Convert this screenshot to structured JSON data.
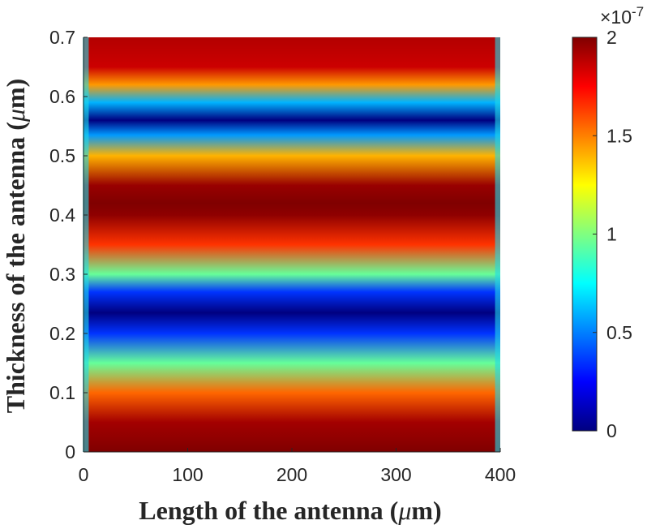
{
  "chart_data": {
    "type": "heatmap",
    "title": "",
    "xlabel": "Length of the antenna",
    "ylabel": "Thickness of the antenna",
    "unit_prefix": "(",
    "unit_symbol": "μ",
    "unit_rest": "m)",
    "xlim": [
      0,
      400
    ],
    "ylim": [
      0,
      0.7
    ],
    "xticks": [
      "0",
      "100",
      "200",
      "300",
      "400"
    ],
    "yticks": [
      "0",
      "0.1",
      "0.2",
      "0.3",
      "0.4",
      "0.5",
      "0.6",
      "0.7"
    ],
    "colorbar": {
      "range": [
        0,
        2e-07
      ],
      "ticks": [
        "0",
        "0.5",
        "1",
        "1.5",
        "2"
      ],
      "exponent_base": "×10",
      "exponent_power": "-7",
      "colormap": "jet"
    },
    "field_profile": {
      "thickness": [
        0.0,
        0.05,
        0.1,
        0.15,
        0.2,
        0.235,
        0.27,
        0.3,
        0.35,
        0.4,
        0.42,
        0.45,
        0.5,
        0.535,
        0.56,
        0.59,
        0.62,
        0.65,
        0.7
      ],
      "value_e7": [
        2.0,
        1.93,
        1.55,
        0.95,
        0.35,
        0.0,
        0.35,
        0.95,
        1.65,
        1.97,
        2.0,
        1.95,
        1.4,
        0.55,
        0.0,
        0.6,
        1.45,
        1.85,
        1.9
      ]
    },
    "edge_length": 5
  }
}
